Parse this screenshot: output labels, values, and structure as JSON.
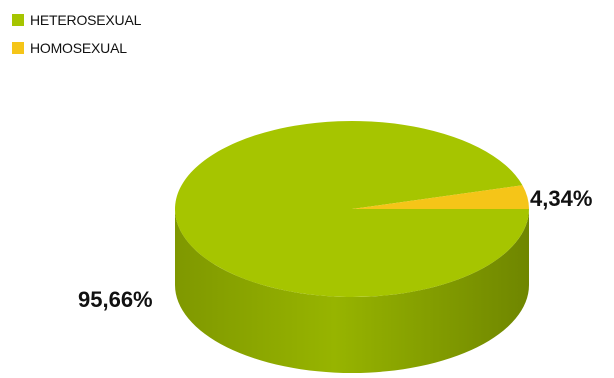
{
  "chart_data": {
    "type": "pie",
    "categories": [
      "HETEROSEXUAL",
      "HOMOSEXUAL"
    ],
    "values": [
      95.66,
      4.34
    ],
    "data_labels": [
      "95,66%",
      "4,34%"
    ],
    "colors": [
      "#a6c500",
      "#f5c518"
    ],
    "legend_position": "top-left",
    "style": "3d"
  }
}
